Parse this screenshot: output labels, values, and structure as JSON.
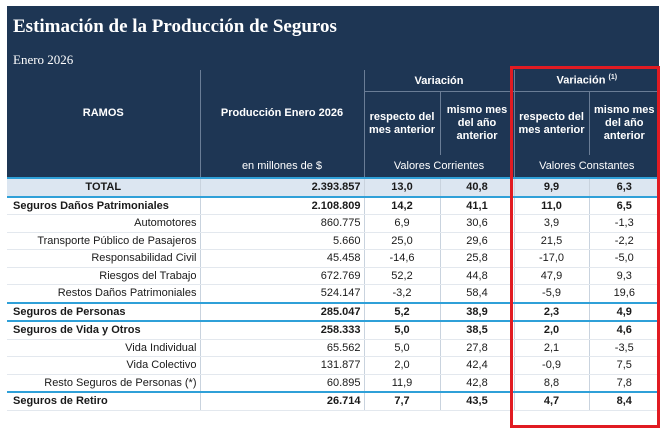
{
  "document": {
    "title": "Estimación de la Producción de Seguros",
    "subtitle": "Enero 2026"
  },
  "table": {
    "headers": {
      "ramos": "RAMOS",
      "produccion": "Producción Enero 2026",
      "variacion_corrientes": "Variación",
      "variacion_constantes": "Variación",
      "variacion_constantes_note": "(1)",
      "respecto_mes_anterior": "respecto del mes anterior",
      "mismo_mes_anio_anterior": "mismo mes del año anterior",
      "unidad": "en millones de $",
      "valores_corrientes": "Valores Corrientes",
      "valores_constantes": "Valores Constantes"
    },
    "rows": [
      {
        "ramo": "TOTAL",
        "produccion": "2.393.857",
        "var_mes": "13,0",
        "var_anio": "40,8",
        "vc_mes": "9,9",
        "vc_anio": "6,3"
      },
      {
        "ramo": "Seguros Daños Patrimoniales",
        "produccion": "2.108.809",
        "var_mes": "14,2",
        "var_anio": "41,1",
        "vc_mes": "11,0",
        "vc_anio": "6,5"
      },
      {
        "ramo": "Automotores",
        "produccion": "860.775",
        "var_mes": "6,9",
        "var_anio": "30,6",
        "vc_mes": "3,9",
        "vc_anio": "-1,3"
      },
      {
        "ramo": "Transporte Público de Pasajeros",
        "produccion": "5.660",
        "var_mes": "25,0",
        "var_anio": "29,6",
        "vc_mes": "21,5",
        "vc_anio": "-2,2"
      },
      {
        "ramo": "Responsabilidad Civil",
        "produccion": "45.458",
        "var_mes": "-14,6",
        "var_anio": "25,8",
        "vc_mes": "-17,0",
        "vc_anio": "-5,0"
      },
      {
        "ramo": "Riesgos del Trabajo",
        "produccion": "672.769",
        "var_mes": "52,2",
        "var_anio": "44,8",
        "vc_mes": "47,9",
        "vc_anio": "9,3"
      },
      {
        "ramo": "Restos Daños Patrimoniales",
        "produccion": "524.147",
        "var_mes": "-3,2",
        "var_anio": "58,4",
        "vc_mes": "-5,9",
        "vc_anio": "19,6"
      },
      {
        "ramo": "Seguros de Personas",
        "produccion": "285.047",
        "var_mes": "5,2",
        "var_anio": "38,9",
        "vc_mes": "2,3",
        "vc_anio": "4,9"
      },
      {
        "ramo": "Seguros de Vida y Otros",
        "produccion": "258.333",
        "var_mes": "5,0",
        "var_anio": "38,5",
        "vc_mes": "2,0",
        "vc_anio": "4,6"
      },
      {
        "ramo": "Vida Individual",
        "produccion": "65.562",
        "var_mes": "5,0",
        "var_anio": "27,8",
        "vc_mes": "2,1",
        "vc_anio": "-3,5"
      },
      {
        "ramo": "Vida Colectivo",
        "produccion": "131.877",
        "var_mes": "2,0",
        "var_anio": "42,4",
        "vc_mes": "-0,9",
        "vc_anio": "7,5"
      },
      {
        "ramo": "Resto Seguros de Personas (*)",
        "produccion": "60.895",
        "var_mes": "11,9",
        "var_anio": "42,8",
        "vc_mes": "8,8",
        "vc_anio": "7,8"
      },
      {
        "ramo": "Seguros de Retiro",
        "produccion": "26.714",
        "var_mes": "7,7",
        "var_anio": "43,5",
        "vc_mes": "4,7",
        "vc_anio": "8,4"
      }
    ]
  },
  "colors": {
    "header_bg": "#1e3654",
    "total_bg": "#dce6f1",
    "highlight_border": "#e11b22",
    "section_line": "#2fa0d8"
  }
}
